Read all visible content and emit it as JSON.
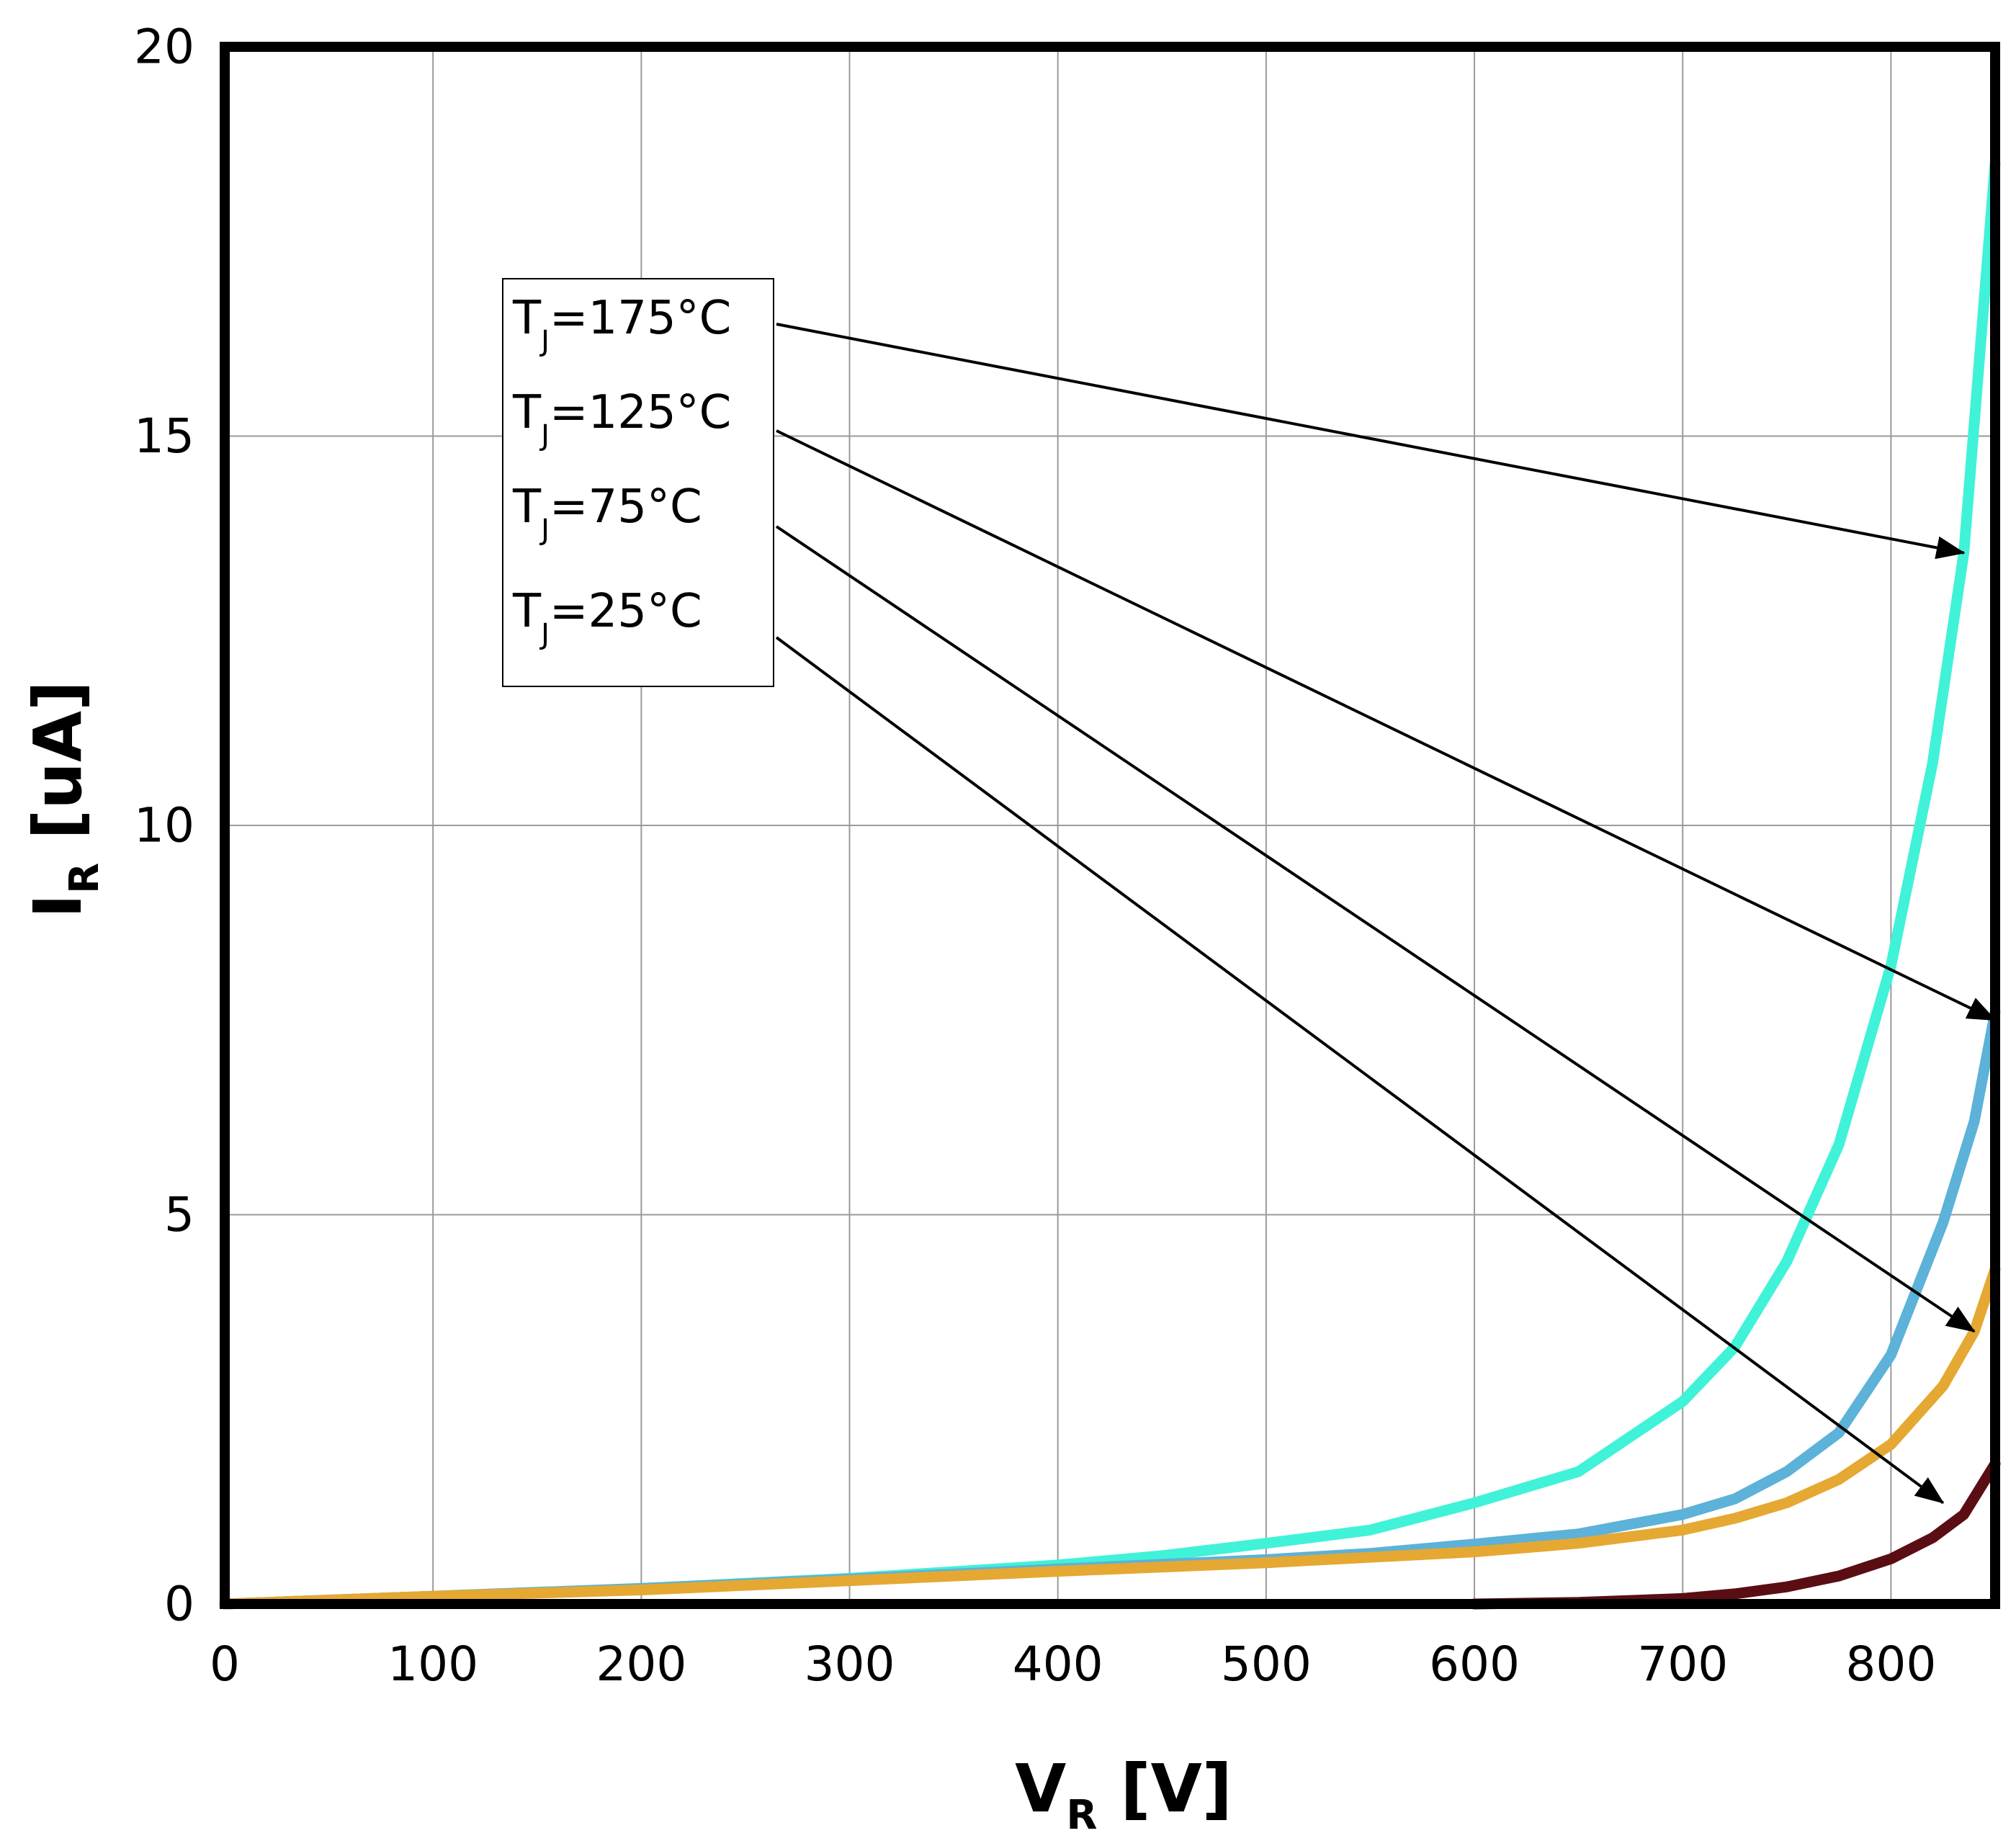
{
  "chart_data": {
    "type": "line",
    "title": "",
    "xlabel": {
      "main": "V",
      "sub": "R",
      "unit": " [V]"
    },
    "ylabel": {
      "main": "I",
      "sub": "R",
      "unit": " [uA]"
    },
    "xlim": [
      0,
      850
    ],
    "ylim": [
      0,
      20
    ],
    "xticks": [
      "0",
      "100",
      "200",
      "300",
      "400",
      "500",
      "600",
      "700",
      "800"
    ],
    "yticks": [
      "0",
      "5",
      "10",
      "15",
      "20"
    ],
    "grid": true,
    "legend_placement": "top-left (annotation box with arrows)",
    "series": [
      {
        "name": "TJ=175°C",
        "label_main": "T",
        "label_sub": "J",
        "label_rest": "=175°C",
        "color": "#40F2D8",
        "x": [
          0,
          100,
          200,
          300,
          400,
          450,
          500,
          550,
          600,
          650,
          700,
          725,
          750,
          775,
          800,
          820,
          835,
          850
        ],
        "y": [
          0,
          0.1,
          0.2,
          0.33,
          0.5,
          0.62,
          0.78,
          0.95,
          1.3,
          1.7,
          2.6,
          3.3,
          4.4,
          5.9,
          8.2,
          10.8,
          13.5,
          18.5
        ]
      },
      {
        "name": "TJ=125°C",
        "label_main": "T",
        "label_sub": "J",
        "label_rest": "=125°C",
        "color": "#5CB2D8",
        "x": [
          0,
          100,
          200,
          300,
          400,
          500,
          550,
          600,
          650,
          700,
          725,
          750,
          775,
          800,
          825,
          840,
          850
        ],
        "y": [
          0,
          0.1,
          0.2,
          0.32,
          0.45,
          0.57,
          0.65,
          0.77,
          0.9,
          1.15,
          1.35,
          1.7,
          2.2,
          3.2,
          4.9,
          6.2,
          7.6
        ]
      },
      {
        "name": "TJ=75°C",
        "label_main": "T",
        "label_sub": "J",
        "label_rest": "=75°C",
        "color": "#E5A832",
        "x": [
          0,
          100,
          200,
          300,
          400,
          500,
          550,
          600,
          650,
          700,
          725,
          750,
          775,
          800,
          825,
          840,
          850
        ],
        "y": [
          0,
          0.1,
          0.18,
          0.3,
          0.42,
          0.53,
          0.6,
          0.67,
          0.78,
          0.95,
          1.1,
          1.3,
          1.6,
          2.05,
          2.8,
          3.5,
          4.3
        ]
      },
      {
        "name": "TJ=25°C",
        "label_main": "T",
        "label_sub": "J",
        "label_rest": "=25°C",
        "color": "#5A0E14",
        "x": [
          600,
          650,
          700,
          725,
          750,
          775,
          800,
          820,
          835,
          850
        ],
        "y": [
          0,
          0.02,
          0.07,
          0.13,
          0.22,
          0.36,
          0.58,
          0.85,
          1.15,
          1.8
        ]
      }
    ]
  }
}
